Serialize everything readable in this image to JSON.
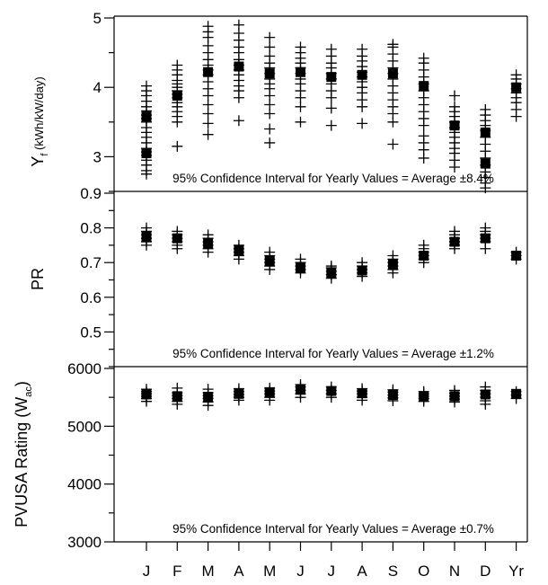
{
  "chart_data": [
    {
      "type": "scatter",
      "ylabel": "Y",
      "ylabel_sub": "f",
      "ylabel_unit": "(kWh/kW/day)",
      "ylim": [
        2.5,
        5.0
      ],
      "yticks": [
        3,
        4,
        5
      ],
      "annotation": "95% Confidence Interval for Yearly Values = Average ±8.4%",
      "categories": [
        "J",
        "F",
        "M",
        "A",
        "M",
        "J",
        "J",
        "A",
        "S",
        "O",
        "N",
        "D",
        "Yr"
      ],
      "points": [
        [
          2.75,
          2.8,
          2.88,
          2.95,
          3.02,
          3.07,
          3.12,
          3.2,
          3.28,
          3.35,
          3.42,
          3.5,
          3.55,
          3.6,
          3.66,
          3.72,
          3.8,
          3.88,
          3.95,
          4.02
        ],
        [
          3.15,
          3.5,
          3.58,
          3.65,
          3.72,
          3.78,
          3.85,
          3.9,
          3.95,
          4.0,
          4.05,
          4.1,
          4.18,
          4.25,
          4.32
        ],
        [
          3.32,
          3.48,
          3.62,
          3.75,
          3.88,
          3.98,
          4.08,
          4.18,
          4.25,
          4.32,
          4.4,
          4.5,
          4.6,
          4.72,
          4.8,
          4.88
        ],
        [
          3.52,
          3.85,
          3.95,
          4.02,
          4.1,
          4.18,
          4.25,
          4.32,
          4.4,
          4.5,
          4.58,
          4.68,
          4.78,
          4.9
        ],
        [
          3.2,
          3.4,
          3.62,
          3.75,
          3.88,
          3.98,
          4.05,
          4.12,
          4.2,
          4.28,
          4.35,
          4.45,
          4.58,
          4.72
        ],
        [
          3.5,
          3.72,
          3.85,
          3.95,
          4.05,
          4.12,
          4.2,
          4.28,
          4.35,
          4.42,
          4.5,
          4.58
        ],
        [
          3.45,
          3.7,
          3.85,
          3.95,
          4.05,
          4.12,
          4.2,
          4.28,
          4.35,
          4.45,
          4.55
        ],
        [
          3.48,
          3.72,
          3.82,
          3.92,
          4.0,
          4.08,
          4.15,
          4.22,
          4.3,
          4.38,
          4.45,
          4.55
        ],
        [
          3.18,
          3.5,
          3.62,
          3.72,
          3.82,
          3.92,
          4.02,
          4.12,
          4.2,
          4.28,
          4.38,
          4.48,
          4.58,
          4.62
        ],
        [
          2.98,
          3.1,
          3.2,
          3.3,
          3.45,
          3.55,
          3.65,
          3.75,
          3.85,
          3.95,
          4.05,
          4.15,
          4.25,
          4.35,
          4.42
        ],
        [
          2.85,
          2.95,
          3.05,
          3.12,
          3.2,
          3.28,
          3.35,
          3.42,
          3.5,
          3.58,
          3.65,
          3.72,
          3.88
        ],
        [
          2.55,
          2.62,
          2.7,
          2.78,
          2.88,
          2.98,
          3.08,
          3.18,
          3.28,
          3.38,
          3.45,
          3.52,
          3.6,
          3.68
        ],
        [
          3.58,
          3.68,
          3.78,
          3.85,
          3.92,
          3.98,
          4.05,
          4.12,
          4.18
        ]
      ],
      "averages": [
        3.58,
        3.88,
        4.22,
        4.3,
        4.2,
        4.22,
        4.15,
        4.18,
        4.2,
        4.02,
        3.45,
        3.35,
        4.0
      ],
      "avg_secondary": [
        3.05,
        null,
        null,
        null,
        null,
        null,
        null,
        null,
        null,
        null,
        null,
        2.9,
        null
      ]
    },
    {
      "type": "scatter",
      "ylabel": "PR",
      "ylim": [
        0.4,
        0.9
      ],
      "yticks": [
        0.5,
        0.6,
        0.7,
        0.8,
        0.9
      ],
      "annotation": "95% Confidence Interval for Yearly Values = Average ±1.2%",
      "categories": [
        "J",
        "F",
        "M",
        "A",
        "M",
        "J",
        "J",
        "A",
        "S",
        "O",
        "N",
        "D",
        "Yr"
      ],
      "points": [
        [
          0.75,
          0.76,
          0.77,
          0.78,
          0.79,
          0.8
        ],
        [
          0.74,
          0.75,
          0.76,
          0.77,
          0.78,
          0.79
        ],
        [
          0.73,
          0.74,
          0.75,
          0.76,
          0.77,
          0.78
        ],
        [
          0.71,
          0.72,
          0.73,
          0.74,
          0.75
        ],
        [
          0.68,
          0.69,
          0.7,
          0.71,
          0.72,
          0.73
        ],
        [
          0.67,
          0.68,
          0.69,
          0.7,
          0.71
        ],
        [
          0.655,
          0.665,
          0.675,
          0.685,
          0.69
        ],
        [
          0.66,
          0.67,
          0.68,
          0.69,
          0.7
        ],
        [
          0.67,
          0.68,
          0.69,
          0.7,
          0.71,
          0.72
        ],
        [
          0.7,
          0.71,
          0.72,
          0.73,
          0.74,
          0.75
        ],
        [
          0.74,
          0.75,
          0.76,
          0.77,
          0.78,
          0.79
        ],
        [
          0.74,
          0.76,
          0.77,
          0.78,
          0.79,
          0.8
        ],
        [
          0.71,
          0.72,
          0.73
        ]
      ],
      "averages": [
        0.775,
        0.77,
        0.755,
        0.735,
        0.705,
        0.685,
        0.67,
        0.677,
        0.695,
        0.72,
        0.76,
        0.77,
        0.72
      ]
    },
    {
      "type": "scatter",
      "ylabel": "PVUSA Rating (W",
      "ylabel_sub": "ac",
      "ylabel_close": ")",
      "ylim": [
        3000,
        6000
      ],
      "yticks": [
        3000,
        4000,
        5000,
        6000
      ],
      "annotation": "95% Confidence Interval for Yearly Values = Average ±0.7%",
      "categories": [
        "J",
        "F",
        "M",
        "A",
        "M",
        "J",
        "J",
        "A",
        "S",
        "O",
        "N",
        "D",
        "Yr"
      ],
      "points": [
        [
          5430,
          5480,
          5520,
          5560,
          5600,
          5640
        ],
        [
          5380,
          5430,
          5480,
          5530,
          5580,
          5660
        ],
        [
          5360,
          5420,
          5480,
          5530,
          5580,
          5640
        ],
        [
          5450,
          5500,
          5550,
          5600,
          5650
        ],
        [
          5450,
          5500,
          5560,
          5610,
          5660
        ],
        [
          5500,
          5560,
          5620,
          5680,
          5720
        ],
        [
          5500,
          5560,
          5620,
          5680
        ],
        [
          5450,
          5500,
          5560,
          5610,
          5650
        ],
        [
          5440,
          5490,
          5540,
          5590,
          5630
        ],
        [
          5430,
          5480,
          5520,
          5560,
          5600
        ],
        [
          5420,
          5470,
          5520,
          5570,
          5620
        ],
        [
          5380,
          5440,
          5500,
          5560,
          5620,
          5680
        ],
        [
          5480,
          5540,
          5600
        ]
      ],
      "averages": [
        5550,
        5520,
        5510,
        5560,
        5590,
        5630,
        5610,
        5570,
        5540,
        5520,
        5520,
        5550,
        5560
      ]
    }
  ]
}
